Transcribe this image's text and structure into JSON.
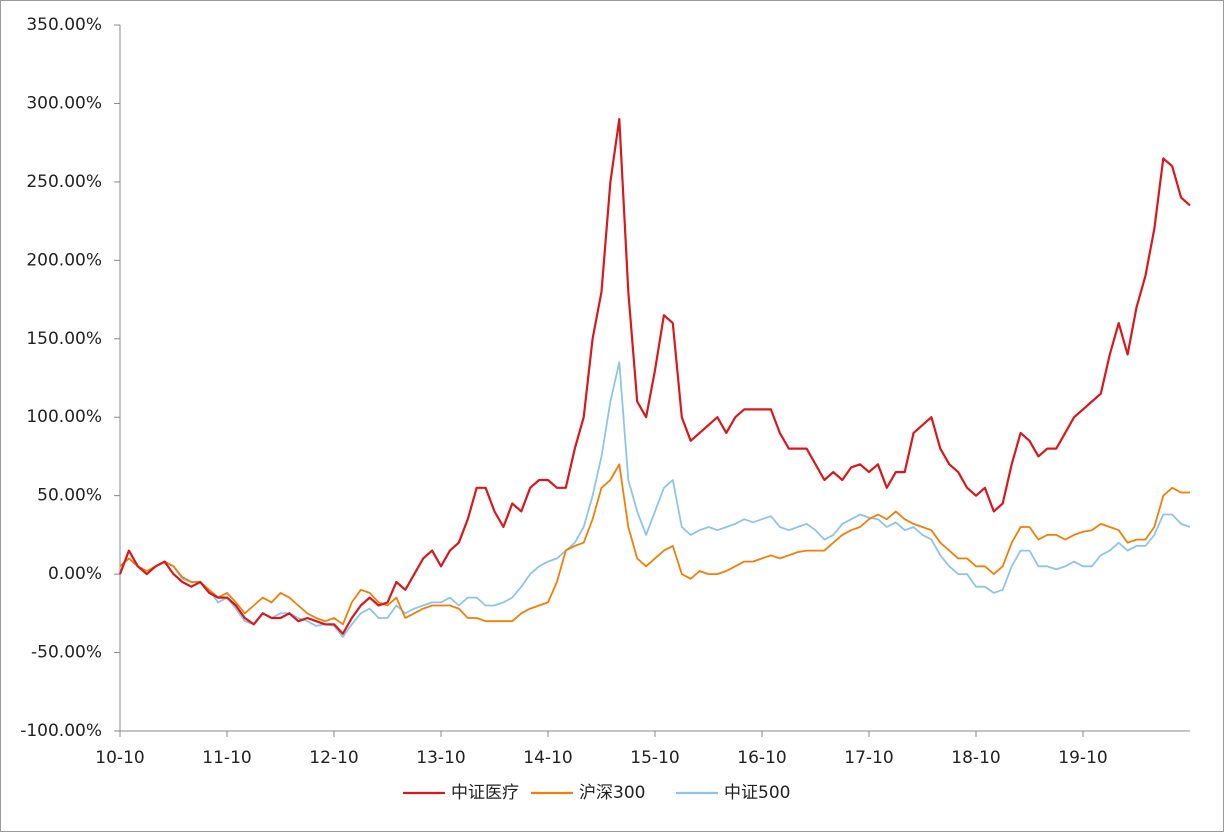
{
  "chart_data": {
    "type": "line",
    "categories": [
      "10-10",
      null,
      null,
      null,
      null,
      null,
      null,
      null,
      null,
      null,
      null,
      null,
      "11-10",
      null,
      null,
      null,
      null,
      null,
      null,
      null,
      null,
      null,
      null,
      null,
      "12-10",
      null,
      null,
      null,
      null,
      null,
      null,
      null,
      null,
      null,
      null,
      null,
      "13-10",
      null,
      null,
      null,
      null,
      null,
      null,
      null,
      null,
      null,
      null,
      null,
      "14-10",
      null,
      null,
      null,
      null,
      null,
      null,
      null,
      null,
      null,
      null,
      null,
      "15-10",
      null,
      null,
      null,
      null,
      null,
      null,
      null,
      null,
      null,
      null,
      null,
      "16-10",
      null,
      null,
      null,
      null,
      null,
      null,
      null,
      null,
      null,
      null,
      null,
      "17-10",
      null,
      null,
      null,
      null,
      null,
      null,
      null,
      null,
      null,
      null,
      null,
      "18-10",
      null,
      null,
      null,
      null,
      null,
      null,
      null,
      null,
      null,
      null,
      null,
      "19-10",
      null,
      null,
      null,
      null,
      null,
      null,
      null,
      null,
      null,
      null,
      null,
      null
    ],
    "series": [
      {
        "name": "中证医疗",
        "color": "#d9181b",
        "values": [
          0,
          15,
          5,
          0,
          5,
          8,
          0,
          -5,
          -8,
          -5,
          -12,
          -15,
          -15,
          -20,
          -28,
          -32,
          -25,
          -28,
          -28,
          -25,
          -30,
          -28,
          -30,
          -32,
          -32,
          -38,
          -28,
          -20,
          -15,
          -20,
          -18,
          -5,
          -10,
          0,
          10,
          15,
          5,
          15,
          20,
          35,
          55,
          55,
          40,
          30,
          45,
          40,
          55,
          60,
          60,
          55,
          55,
          80,
          100,
          150,
          180,
          250,
          290,
          180,
          110,
          100,
          130,
          165,
          160,
          100,
          85,
          90,
          95,
          100,
          90,
          100,
          105,
          105,
          105,
          105,
          90,
          80,
          80,
          80,
          70,
          60,
          65,
          60,
          68,
          70,
          65,
          70,
          55,
          65,
          65,
          90,
          95,
          100,
          80,
          70,
          65,
          55,
          50,
          55,
          40,
          45,
          70,
          90,
          85,
          75,
          80,
          80,
          90,
          100,
          105,
          110,
          115,
          140,
          160,
          140,
          170,
          190,
          220,
          265,
          260,
          240,
          235
        ]
      },
      {
        "name": "沪深300",
        "color": "#f07f09",
        "values": [
          5,
          10,
          5,
          2,
          5,
          8,
          5,
          -2,
          -5,
          -5,
          -10,
          -15,
          -12,
          -18,
          -25,
          -20,
          -15,
          -18,
          -12,
          -15,
          -20,
          -25,
          -28,
          -30,
          -28,
          -32,
          -18,
          -10,
          -12,
          -18,
          -20,
          -15,
          -28,
          -25,
          -22,
          -20,
          -20,
          -20,
          -22,
          -28,
          -28,
          -30,
          -30,
          -30,
          -30,
          -25,
          -22,
          -20,
          -18,
          -5,
          15,
          18,
          20,
          35,
          55,
          60,
          70,
          30,
          10,
          5,
          10,
          15,
          18,
          0,
          -3,
          2,
          0,
          0,
          2,
          5,
          8,
          8,
          10,
          12,
          10,
          12,
          14,
          15,
          15,
          15,
          20,
          25,
          28,
          30,
          35,
          38,
          35,
          40,
          35,
          32,
          30,
          28,
          20,
          15,
          10,
          10,
          5,
          5,
          0,
          5,
          20,
          30,
          30,
          22,
          25,
          25,
          22,
          25,
          27,
          28,
          32,
          30,
          28,
          20,
          22,
          22,
          30,
          50,
          55,
          52,
          52
        ]
      },
      {
        "name": "中证500",
        "color": "#8ec4e9",
        "values": [
          5,
          10,
          5,
          0,
          5,
          8,
          5,
          -3,
          -5,
          -5,
          -10,
          -18,
          -15,
          -22,
          -30,
          -32,
          -25,
          -28,
          -25,
          -25,
          -28,
          -30,
          -33,
          -32,
          -33,
          -40,
          -32,
          -25,
          -22,
          -28,
          -28,
          -20,
          -25,
          -22,
          -20,
          -18,
          -18,
          -15,
          -20,
          -15,
          -15,
          -20,
          -20,
          -18,
          -15,
          -8,
          0,
          5,
          8,
          10,
          15,
          20,
          30,
          50,
          75,
          110,
          135,
          60,
          40,
          25,
          40,
          55,
          60,
          30,
          25,
          28,
          30,
          28,
          30,
          32,
          35,
          33,
          35,
          37,
          30,
          28,
          30,
          32,
          28,
          22,
          25,
          32,
          35,
          38,
          36,
          35,
          30,
          33,
          28,
          30,
          25,
          22,
          12,
          5,
          0,
          0,
          -8,
          -8,
          -12,
          -10,
          5,
          15,
          15,
          5,
          5,
          3,
          5,
          8,
          5,
          5,
          12,
          15,
          20,
          15,
          18,
          18,
          25,
          38,
          38,
          32,
          30
        ]
      }
    ],
    "ylim": [
      -100,
      350
    ],
    "yticks": [
      {
        "value": -100,
        "label": "-100.00%"
      },
      {
        "value": -50,
        "label": "-50.00%"
      },
      {
        "value": 0,
        "label": "0.00%"
      },
      {
        "value": 50,
        "label": "50.00%"
      },
      {
        "value": 100,
        "label": "100.00%"
      },
      {
        "value": 150,
        "label": "150.00%"
      },
      {
        "value": 200,
        "label": "200.00%"
      },
      {
        "value": 250,
        "label": "250.00%"
      },
      {
        "value": 300,
        "label": "300.00%"
      },
      {
        "value": 350,
        "label": "350.00%"
      }
    ],
    "grid": false
  }
}
